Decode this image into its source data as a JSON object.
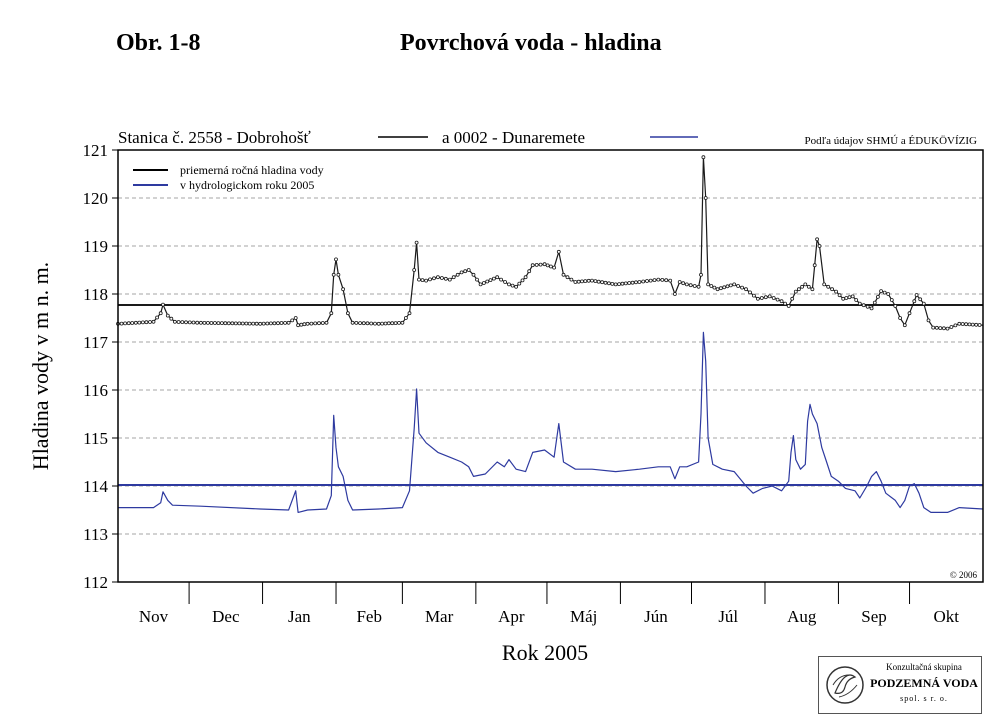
{
  "figure_label": "Obr. 1-8",
  "figure_title": "Povrchová voda - hladina",
  "logo": {
    "line1": "Konzultačná skupina",
    "line2": "PODZEMNÁ VODA",
    "line3": "spol. s r. o."
  },
  "chart_data": {
    "type": "line",
    "title": "",
    "xlabel": "Rok 2005",
    "ylabel": "Hladina vody v m n. m.",
    "ylim": [
      112,
      121
    ],
    "yticks": [
      112,
      113,
      114,
      115,
      116,
      117,
      118,
      119,
      120,
      121
    ],
    "grid": "horizontal dashed",
    "months": [
      "Nov",
      "Dec",
      "Jan",
      "Feb",
      "Mar",
      "Apr",
      "Máj",
      "Jún",
      "Júl",
      "Aug",
      "Sep",
      "Okt"
    ],
    "month_days": [
      30,
      31,
      31,
      28,
      31,
      30,
      31,
      30,
      31,
      31,
      30,
      31
    ],
    "header": {
      "station1": "Stanica č. 2558 - Dobrohošť",
      "station2": "a 0002 - Dunaremete",
      "source": "Podľa údajov SHMÚ a ÉDUKÖVÍZIG"
    },
    "legend": {
      "line1": "priemerná ročná hladina vody",
      "line2": "v hydrologickom roku 2005",
      "placement": "top-left"
    },
    "copyright": "© 2006",
    "series": [
      {
        "name": "Stanica č. 2558 - Dobrohošť",
        "color": "#1a1a1a",
        "marker": "circle-open",
        "average": 117.77,
        "points": [
          [
            0,
            117.38
          ],
          [
            15,
            117.42
          ],
          [
            18,
            117.6
          ],
          [
            19,
            117.78
          ],
          [
            21,
            117.55
          ],
          [
            24,
            117.42
          ],
          [
            35,
            117.4
          ],
          [
            60,
            117.38
          ],
          [
            72,
            117.4
          ],
          [
            75,
            117.5
          ],
          [
            76,
            117.35
          ],
          [
            80,
            117.38
          ],
          [
            88,
            117.4
          ],
          [
            90,
            117.6
          ],
          [
            91,
            118.4
          ],
          [
            92,
            118.72
          ],
          [
            93,
            118.4
          ],
          [
            95,
            118.1
          ],
          [
            97,
            117.6
          ],
          [
            99,
            117.4
          ],
          [
            110,
            117.38
          ],
          [
            120,
            117.4
          ],
          [
            123,
            117.6
          ],
          [
            125,
            118.5
          ],
          [
            126,
            119.07
          ],
          [
            127,
            118.3
          ],
          [
            130,
            118.28
          ],
          [
            135,
            118.35
          ],
          [
            140,
            118.3
          ],
          [
            145,
            118.45
          ],
          [
            148,
            118.5
          ],
          [
            150,
            118.4
          ],
          [
            153,
            118.2
          ],
          [
            160,
            118.35
          ],
          [
            165,
            118.2
          ],
          [
            168,
            118.15
          ],
          [
            172,
            118.35
          ],
          [
            175,
            118.6
          ],
          [
            180,
            118.62
          ],
          [
            184,
            118.55
          ],
          [
            186,
            118.88
          ],
          [
            188,
            118.4
          ],
          [
            193,
            118.25
          ],
          [
            200,
            118.28
          ],
          [
            210,
            118.2
          ],
          [
            220,
            118.25
          ],
          [
            228,
            118.3
          ],
          [
            233,
            118.28
          ],
          [
            235,
            118.0
          ],
          [
            237,
            118.25
          ],
          [
            240,
            118.2
          ],
          [
            245,
            118.15
          ],
          [
            246,
            118.4
          ],
          [
            247,
            120.85
          ],
          [
            248,
            120.0
          ],
          [
            249,
            118.2
          ],
          [
            253,
            118.1
          ],
          [
            260,
            118.2
          ],
          [
            265,
            118.1
          ],
          [
            270,
            117.9
          ],
          [
            275,
            117.95
          ],
          [
            280,
            117.85
          ],
          [
            283,
            117.75
          ],
          [
            286,
            118.05
          ],
          [
            290,
            118.2
          ],
          [
            293,
            118.1
          ],
          [
            294,
            118.6
          ],
          [
            295,
            119.14
          ],
          [
            296,
            119.0
          ],
          [
            298,
            118.2
          ],
          [
            303,
            118.05
          ],
          [
            306,
            117.9
          ],
          [
            310,
            117.95
          ],
          [
            313,
            117.8
          ],
          [
            318,
            117.7
          ],
          [
            322,
            118.06
          ],
          [
            325,
            118.0
          ],
          [
            328,
            117.75
          ],
          [
            330,
            117.5
          ],
          [
            332,
            117.35
          ],
          [
            334,
            117.6
          ],
          [
            336,
            117.85
          ],
          [
            337,
            117.98
          ],
          [
            340,
            117.8
          ],
          [
            342,
            117.45
          ],
          [
            344,
            117.3
          ],
          [
            350,
            117.28
          ],
          [
            355,
            117.38
          ],
          [
            365,
            117.35
          ]
        ]
      },
      {
        "name": "a 0002 - Dunaremete",
        "color": "#2e3aa0",
        "marker": "none",
        "average": 114.02,
        "points": [
          [
            0,
            113.55
          ],
          [
            15,
            113.55
          ],
          [
            18,
            113.65
          ],
          [
            19,
            113.88
          ],
          [
            21,
            113.7
          ],
          [
            23,
            113.6
          ],
          [
            35,
            113.58
          ],
          [
            60,
            113.52
          ],
          [
            72,
            113.5
          ],
          [
            75,
            113.9
          ],
          [
            76,
            113.45
          ],
          [
            80,
            113.5
          ],
          [
            88,
            113.52
          ],
          [
            90,
            113.8
          ],
          [
            91,
            115.47
          ],
          [
            92,
            114.8
          ],
          [
            93,
            114.4
          ],
          [
            95,
            114.2
          ],
          [
            97,
            113.7
          ],
          [
            99,
            113.5
          ],
          [
            110,
            113.52
          ],
          [
            120,
            113.55
          ],
          [
            123,
            113.9
          ],
          [
            125,
            115.2
          ],
          [
            126,
            116.02
          ],
          [
            127,
            115.1
          ],
          [
            130,
            114.9
          ],
          [
            135,
            114.7
          ],
          [
            140,
            114.6
          ],
          [
            145,
            114.5
          ],
          [
            148,
            114.4
          ],
          [
            150,
            114.2
          ],
          [
            155,
            114.25
          ],
          [
            160,
            114.5
          ],
          [
            163,
            114.4
          ],
          [
            165,
            114.55
          ],
          [
            168,
            114.35
          ],
          [
            172,
            114.3
          ],
          [
            175,
            114.7
          ],
          [
            180,
            114.75
          ],
          [
            184,
            114.6
          ],
          [
            186,
            115.3
          ],
          [
            188,
            114.5
          ],
          [
            193,
            114.35
          ],
          [
            200,
            114.35
          ],
          [
            210,
            114.3
          ],
          [
            220,
            114.35
          ],
          [
            228,
            114.4
          ],
          [
            233,
            114.4
          ],
          [
            235,
            114.15
          ],
          [
            237,
            114.4
          ],
          [
            240,
            114.4
          ],
          [
            245,
            114.5
          ],
          [
            246,
            115.5
          ],
          [
            247,
            117.2
          ],
          [
            248,
            116.6
          ],
          [
            249,
            115.0
          ],
          [
            251,
            114.45
          ],
          [
            255,
            114.35
          ],
          [
            260,
            114.3
          ],
          [
            265,
            114.0
          ],
          [
            268,
            113.85
          ],
          [
            272,
            113.95
          ],
          [
            276,
            114.0
          ],
          [
            280,
            113.9
          ],
          [
            283,
            114.1
          ],
          [
            284,
            114.7
          ],
          [
            285,
            115.05
          ],
          [
            286,
            114.55
          ],
          [
            288,
            114.35
          ],
          [
            290,
            114.45
          ],
          [
            291,
            115.35
          ],
          [
            292,
            115.7
          ],
          [
            293,
            115.5
          ],
          [
            295,
            115.3
          ],
          [
            297,
            114.8
          ],
          [
            299,
            114.5
          ],
          [
            301,
            114.2
          ],
          [
            304,
            114.1
          ],
          [
            307,
            113.95
          ],
          [
            311,
            113.9
          ],
          [
            313,
            113.75
          ],
          [
            316,
            114.0
          ],
          [
            318,
            114.2
          ],
          [
            320,
            114.3
          ],
          [
            322,
            114.1
          ],
          [
            324,
            113.85
          ],
          [
            328,
            113.7
          ],
          [
            330,
            113.55
          ],
          [
            332,
            113.7
          ],
          [
            334,
            114.0
          ],
          [
            336,
            114.05
          ],
          [
            338,
            113.85
          ],
          [
            340,
            113.55
          ],
          [
            343,
            113.45
          ],
          [
            350,
            113.45
          ],
          [
            355,
            113.55
          ],
          [
            365,
            113.52
          ]
        ]
      }
    ]
  }
}
